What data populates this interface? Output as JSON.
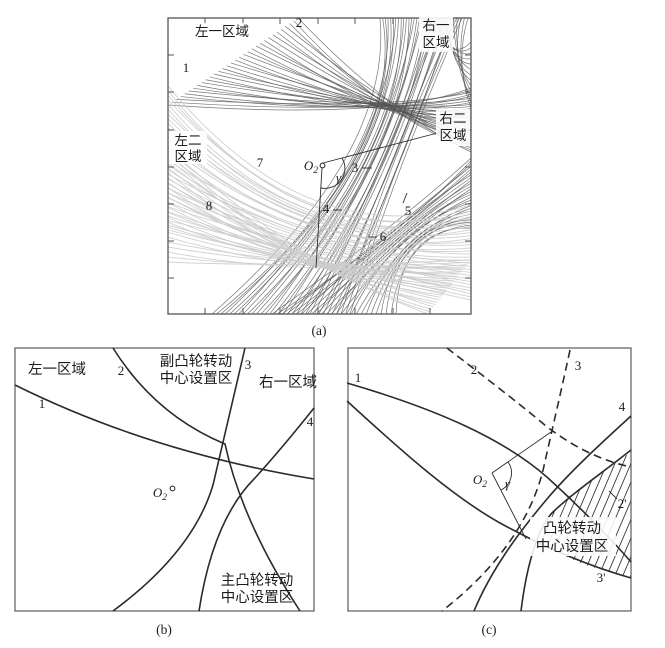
{
  "panels": {
    "a": {
      "caption": "(a)",
      "region_left1": "左一区域",
      "region_right1": [
        "右一",
        "区域"
      ],
      "region_right2": [
        "右二",
        "区域"
      ],
      "region_left2": [
        "左二",
        "区域"
      ],
      "curves": {
        "c1": "1",
        "c2": "2",
        "c3": "3",
        "c4": "4",
        "c5": "5",
        "c6": "6",
        "c7": "7",
        "c8": "8"
      },
      "center": {
        "base": "O",
        "sub": "2"
      },
      "angle": "γ"
    },
    "b": {
      "caption": "(b)",
      "region_left1": "左一区域",
      "region_right1": "右一区域",
      "region_sub_cam": [
        "副凸轮转动",
        "中心设置区"
      ],
      "region_main_cam": [
        "主凸轮转动",
        "中心设置区"
      ],
      "curves": {
        "c1": "1",
        "c2": "2",
        "c3": "3",
        "c4": "4"
      },
      "center": {
        "base": "O",
        "sub": "2"
      }
    },
    "c": {
      "caption": "(c)",
      "region_cam": [
        "凸轮转动",
        "中心设置区"
      ],
      "curves": {
        "c1": "1",
        "c2": "2",
        "c3": "3",
        "c4": "4",
        "c2p": "2'",
        "c3p": "3'"
      },
      "center": {
        "base": "O",
        "sub": "2"
      },
      "angle": "γ"
    }
  },
  "colors": {
    "stroke": "#2b2b2b",
    "dark_band": "#555555",
    "light_band": "#cccccc",
    "panel_a_border": "#555555",
    "panel_bc_border": "#666666"
  }
}
